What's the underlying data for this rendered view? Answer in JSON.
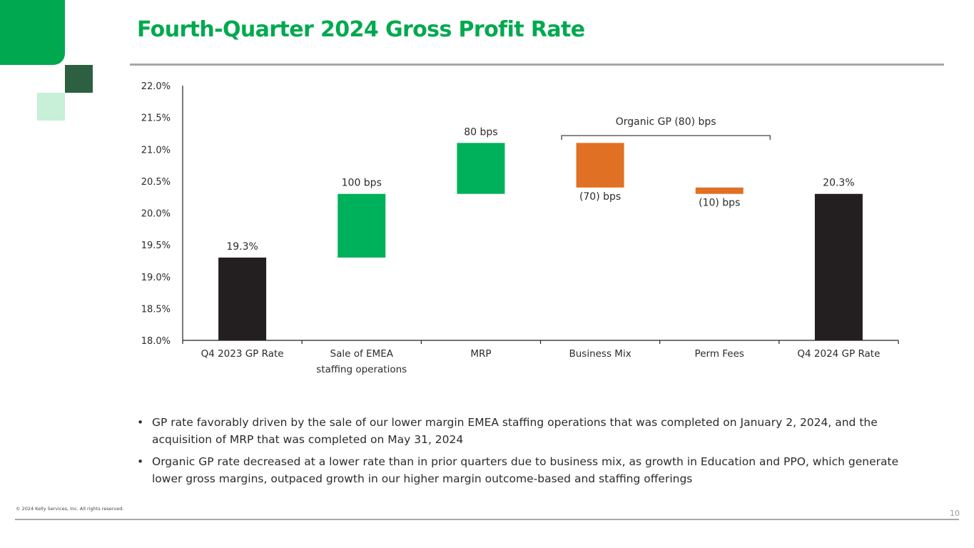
{
  "slide": {
    "title": "Fourth-Quarter 2024 Gross Profit Rate",
    "copyright": "© 2024 Kelly Services, Inc. All rights reserved.",
    "page_number": "10",
    "colors": {
      "brand_green": "#00a94f",
      "dark_green": "#2d6040",
      "light_green": "#c8efd8",
      "increase": "#00b15b",
      "decrease": "#e07023",
      "total": "#231f20",
      "rule_gray": "#a8a8a8"
    }
  },
  "chart_data": {
    "type": "bar",
    "subtype": "waterfall",
    "categories": [
      [
        "Q4 2023 GP Rate"
      ],
      [
        "Sale of EMEA",
        "staffing operations"
      ],
      [
        "MRP"
      ],
      [
        "Business Mix"
      ],
      [
        "Perm Fees"
      ],
      [
        "Q4 2024 GP Rate"
      ]
    ],
    "steps": [
      {
        "kind": "total",
        "value": 19.3,
        "label": "19.3%"
      },
      {
        "kind": "increase",
        "value": 1.0,
        "label": "100 bps"
      },
      {
        "kind": "increase",
        "value": 0.8,
        "label": "80 bps"
      },
      {
        "kind": "decrease",
        "value": -0.7,
        "label": "(70) bps"
      },
      {
        "kind": "decrease",
        "value": -0.1,
        "label": "(10) bps"
      },
      {
        "kind": "total",
        "value": 20.3,
        "label": "20.3%"
      }
    ],
    "ylim": [
      18.0,
      22.0
    ],
    "yticks": [
      "18.0%",
      "18.5%",
      "19.0%",
      "19.5%",
      "20.0%",
      "20.5%",
      "21.0%",
      "21.5%",
      "22.0%"
    ],
    "bracket": {
      "label": "Organic GP (80) bps",
      "from_category": 3,
      "to_category": 4
    },
    "grid": false,
    "legend": "none",
    "xlabel": "",
    "ylabel": ""
  },
  "bullets": [
    "GP rate favorably driven by the sale of our lower margin EMEA staffing operations that was completed on January 2, 2024, and the acquisition of MRP that was completed on May 31, 2024",
    "Organic GP rate decreased at a lower rate than in prior quarters due to business mix, as growth in Education and PPO, which generate lower gross margins, outpaced growth in our higher margin outcome-based and staffing offerings"
  ]
}
